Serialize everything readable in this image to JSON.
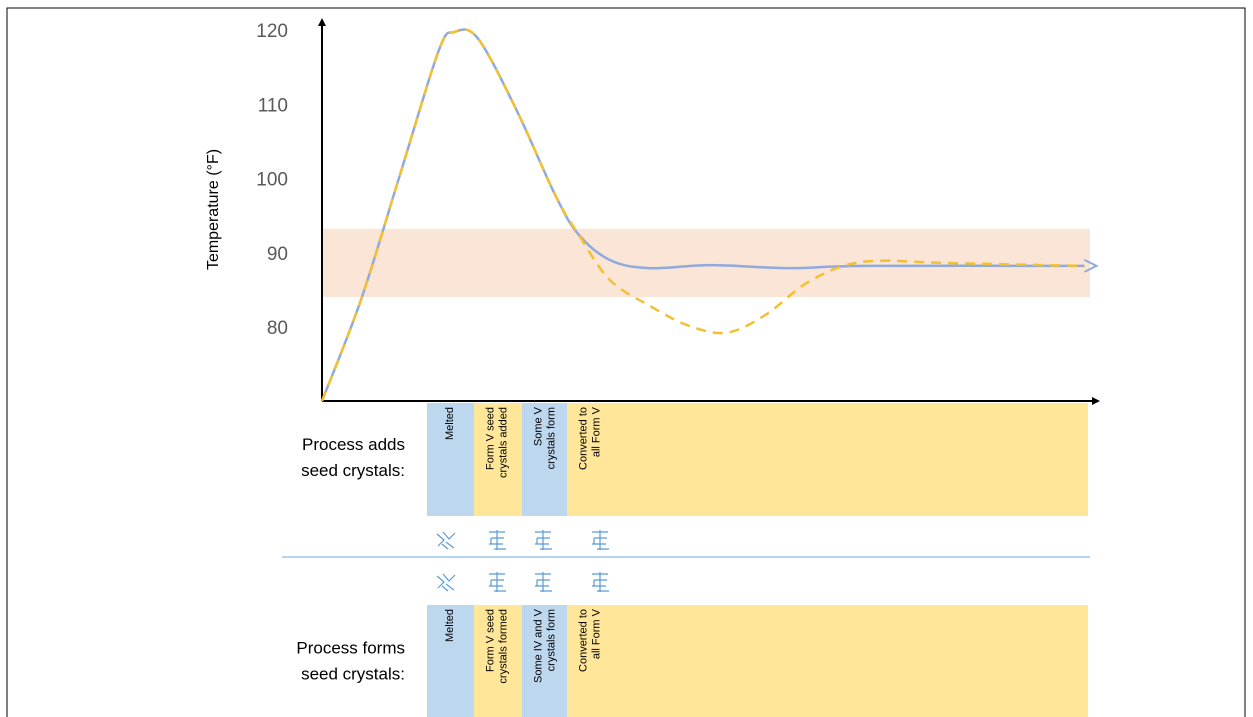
{
  "chart_data": {
    "type": "line",
    "y_label": "Temperature (°F)",
    "xlim": [
      0,
      100
    ],
    "ylim": [
      70.3,
      121.9
    ],
    "yticks": [
      80,
      90,
      100,
      110,
      120
    ],
    "band": [
      84.3,
      93.5
    ],
    "band_color": "#fbe5d6",
    "series": [
      {
        "color": "#8faadc",
        "dashed": false,
        "x": [
          0,
          5,
          10,
          15,
          17,
          20,
          25,
          30,
          33,
          37,
          42,
          50,
          60,
          70,
          98
        ],
        "values": [
          70.3,
          83.9,
          100.7,
          117.5,
          120,
          119.2,
          109.5,
          98.0,
          92.7,
          89.3,
          88.2,
          88.6,
          88.2,
          88.5,
          88.5
        ]
      },
      {
        "color": "#f4c030",
        "dashed": true,
        "x": [
          0,
          5,
          10,
          15,
          17,
          20,
          25,
          30,
          33,
          37,
          42,
          47,
          52,
          57,
          62,
          67,
          72,
          80,
          98
        ],
        "values": [
          70.3,
          83.9,
          100.7,
          117.5,
          120,
          119.2,
          109.5,
          98.0,
          92.7,
          86.6,
          83.2,
          80.5,
          79.5,
          81.9,
          86.0,
          88.5,
          89.2,
          88.9,
          88.5
        ]
      }
    ]
  },
  "processes": [
    {
      "label_lines": [
        "Process adds",
        "seed crystals:"
      ],
      "stages": [
        {
          "lines": [
            "Melted"
          ],
          "color": "#bdd7ee"
        },
        {
          "lines": [
            "Form V seed",
            "crystals added"
          ],
          "color": "#ffe699"
        },
        {
          "lines": [
            "Some V",
            "crystals form"
          ],
          "color": "#bdd7ee"
        },
        {
          "lines": [
            "Converted to",
            "all Form V"
          ],
          "color": "#ffe699"
        }
      ]
    },
    {
      "label_lines": [
        "Process forms",
        "seed crystals:"
      ],
      "stages": [
        {
          "lines": [
            "Melted"
          ],
          "color": "#bdd7ee"
        },
        {
          "lines": [
            "Form V seed",
            "crystals formed"
          ],
          "color": "#ffe699"
        },
        {
          "lines": [
            "Some IV and V",
            "crystals form"
          ],
          "color": "#bdd7ee"
        },
        {
          "lines": [
            "Converted to",
            "all Form V"
          ],
          "color": "#ffe699"
        }
      ]
    }
  ]
}
